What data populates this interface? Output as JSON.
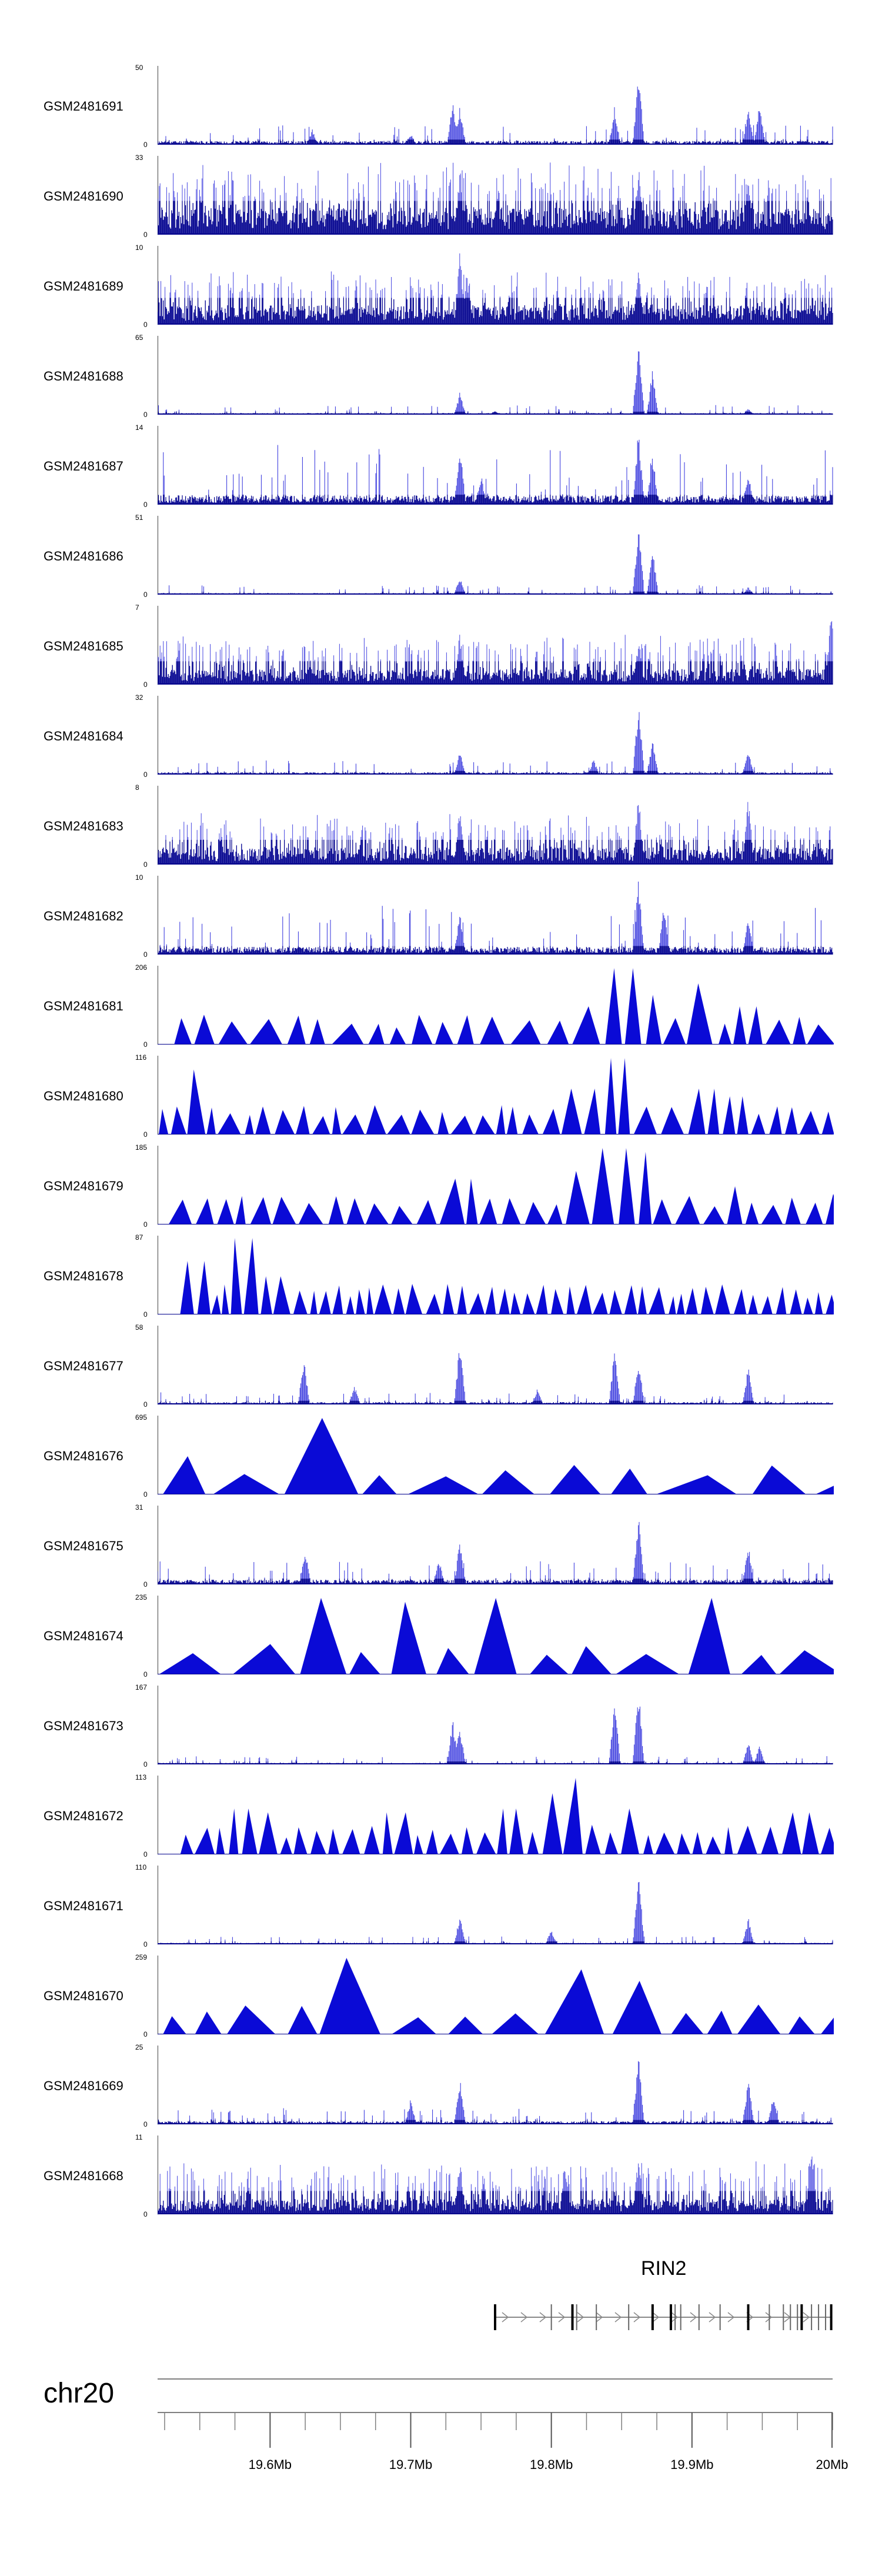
{
  "chart_data": {
    "type": "genome-browser",
    "region": {
      "chromosome": "chr20",
      "start_mb": 19.52,
      "end_mb": 20.0
    },
    "tracks": [
      {
        "name": "GSM2481691",
        "max": "50",
        "min": "0",
        "style": "signal",
        "seed": 11,
        "base": 0.05,
        "noise": 0.1,
        "peaks": [
          [
            19.73,
            0.6
          ],
          [
            19.735,
            0.5
          ],
          [
            19.845,
            0.5
          ],
          [
            19.862,
            1.0
          ],
          [
            19.94,
            0.5
          ],
          [
            19.948,
            0.55
          ],
          [
            19.63,
            0.2
          ],
          [
            19.7,
            0.15
          ]
        ]
      },
      {
        "name": "GSM2481690",
        "max": "33",
        "min": "0",
        "style": "dense",
        "seed": 12,
        "base": 0.35,
        "noise": 0.45,
        "peaks": [
          [
            19.735,
            0.9
          ],
          [
            19.862,
            0.95
          ],
          [
            19.94,
            0.8
          ]
        ]
      },
      {
        "name": "GSM2481689",
        "max": "10",
        "min": "0",
        "style": "dense",
        "seed": 13,
        "base": 0.25,
        "noise": 0.35,
        "peaks": [
          [
            19.735,
            1.0
          ],
          [
            19.862,
            0.8
          ],
          [
            19.74,
            0.7
          ]
        ]
      },
      {
        "name": "GSM2481688",
        "max": "65",
        "min": "0",
        "style": "signal",
        "seed": 14,
        "base": 0.02,
        "noise": 0.05,
        "peaks": [
          [
            19.735,
            0.3
          ],
          [
            19.862,
            1.0
          ],
          [
            19.872,
            0.6
          ],
          [
            19.76,
            0.05
          ],
          [
            19.94,
            0.08
          ]
        ]
      },
      {
        "name": "GSM2481687",
        "max": "14",
        "min": "0",
        "style": "signal",
        "seed": 15,
        "base": 0.12,
        "noise": 0.3,
        "peaks": [
          [
            19.735,
            0.8
          ],
          [
            19.862,
            1.0
          ],
          [
            19.872,
            0.7
          ],
          [
            19.75,
            0.4
          ],
          [
            19.94,
            0.45
          ]
        ]
      },
      {
        "name": "GSM2481686",
        "max": "51",
        "min": "0",
        "style": "signal",
        "seed": 16,
        "base": 0.02,
        "noise": 0.05,
        "peaks": [
          [
            19.735,
            0.25
          ],
          [
            19.862,
            1.0
          ],
          [
            19.872,
            0.6
          ],
          [
            19.94,
            0.1
          ]
        ]
      },
      {
        "name": "GSM2481685",
        "max": "7",
        "min": "0",
        "style": "dense",
        "seed": 17,
        "base": 0.2,
        "noise": 0.35,
        "peaks": [
          [
            19.999,
            1.0
          ],
          [
            19.735,
            0.7
          ],
          [
            19.862,
            0.6
          ]
        ]
      },
      {
        "name": "GSM2481684",
        "max": "32",
        "min": "0",
        "style": "signal",
        "seed": 18,
        "base": 0.03,
        "noise": 0.07,
        "peaks": [
          [
            19.735,
            0.3
          ],
          [
            19.862,
            0.95
          ],
          [
            19.872,
            0.45
          ],
          [
            19.94,
            0.35
          ],
          [
            19.83,
            0.2
          ]
        ]
      },
      {
        "name": "GSM2481683",
        "max": "8",
        "min": "0",
        "style": "dense",
        "seed": 19,
        "base": 0.22,
        "noise": 0.35,
        "peaks": [
          [
            19.735,
            0.8
          ],
          [
            19.862,
            0.95
          ],
          [
            19.94,
            0.9
          ]
        ]
      },
      {
        "name": "GSM2481682",
        "max": "10",
        "min": "0",
        "style": "signal",
        "seed": 20,
        "base": 0.1,
        "noise": 0.25,
        "peaks": [
          [
            19.862,
            1.0
          ],
          [
            19.735,
            0.6
          ],
          [
            19.88,
            0.7
          ],
          [
            19.94,
            0.5
          ]
        ]
      },
      {
        "name": "GSM2481681",
        "max": "206",
        "min": "0",
        "style": "triangle",
        "seed": 21,
        "count": 30,
        "peaks": [
          [
            19.85,
            1.0
          ],
          [
            19.84,
            0.7
          ],
          [
            19.83,
            0.5
          ],
          [
            19.863,
            0.85
          ],
          [
            19.875,
            0.65
          ],
          [
            19.9,
            0.8
          ],
          [
            19.94,
            0.5
          ]
        ]
      },
      {
        "name": "GSM2481680",
        "max": "116",
        "min": "0",
        "style": "triangle",
        "seed": 22,
        "count": 42,
        "peaks": [
          [
            19.55,
            0.85
          ],
          [
            19.845,
            1.0
          ],
          [
            19.82,
            0.6
          ],
          [
            19.91,
            0.6
          ],
          [
            19.93,
            0.5
          ]
        ]
      },
      {
        "name": "GSM2481679",
        "max": "185",
        "min": "0",
        "style": "triangle",
        "seed": 23,
        "count": 38,
        "peaks": [
          [
            19.845,
            1.0
          ],
          [
            19.863,
            0.95
          ],
          [
            19.82,
            0.7
          ],
          [
            19.74,
            0.6
          ],
          [
            19.93,
            0.5
          ],
          [
            20.0,
            0.4
          ]
        ]
      },
      {
        "name": "GSM2481678",
        "max": "87",
        "min": "0",
        "style": "triangle",
        "seed": 24,
        "count": 55,
        "peaks": [
          [
            19.58,
            1.0
          ],
          [
            19.53,
            0.95
          ],
          [
            19.545,
            0.7
          ],
          [
            19.6,
            0.5
          ],
          [
            19.7,
            0.4
          ]
        ]
      },
      {
        "name": "GSM2481677",
        "max": "58",
        "min": "0",
        "style": "signal",
        "seed": 25,
        "base": 0.03,
        "noise": 0.06,
        "peaks": [
          [
            19.624,
            0.62
          ],
          [
            19.735,
            0.85
          ],
          [
            19.845,
            0.75
          ],
          [
            19.862,
            0.6
          ],
          [
            19.94,
            0.5
          ],
          [
            19.66,
            0.25
          ],
          [
            19.79,
            0.2
          ]
        ]
      },
      {
        "name": "GSM2481676",
        "max": "695",
        "min": "0",
        "style": "triangle",
        "seed": 26,
        "count": 12,
        "peaks": [
          [
            19.65,
            1.0
          ],
          [
            19.66,
            0.6
          ],
          [
            19.55,
            0.5
          ]
        ]
      },
      {
        "name": "GSM2481675",
        "max": "31",
        "min": "0",
        "style": "signal",
        "seed": 27,
        "base": 0.06,
        "noise": 0.12,
        "peaks": [
          [
            19.862,
            1.0
          ],
          [
            19.735,
            0.6
          ],
          [
            19.94,
            0.55
          ],
          [
            19.625,
            0.45
          ],
          [
            19.72,
            0.35
          ]
        ]
      },
      {
        "name": "GSM2481674",
        "max": "235",
        "min": "0",
        "style": "triangle",
        "seed": 28,
        "count": 14,
        "peaks": [
          [
            19.624,
            1.0
          ],
          [
            19.69,
            0.95
          ],
          [
            19.76,
            1.0
          ],
          [
            19.924,
            1.0
          ]
        ]
      },
      {
        "name": "GSM2481673",
        "max": "167",
        "min": "0",
        "style": "signal",
        "seed": 29,
        "base": 0.02,
        "noise": 0.04,
        "peaks": [
          [
            19.73,
            0.6
          ],
          [
            19.735,
            0.5
          ],
          [
            19.845,
            0.85
          ],
          [
            19.862,
            1.0
          ],
          [
            19.94,
            0.3
          ],
          [
            19.948,
            0.25
          ]
        ]
      },
      {
        "name": "GSM2481672",
        "max": "113",
        "min": "0",
        "style": "triangle",
        "seed": 30,
        "count": 48,
        "peaks": [
          [
            19.815,
            1.0
          ],
          [
            19.8,
            0.8
          ],
          [
            19.58,
            0.6
          ],
          [
            19.6,
            0.55
          ],
          [
            19.69,
            0.55
          ],
          [
            19.77,
            0.6
          ],
          [
            19.86,
            0.6
          ],
          [
            19.98,
            0.55
          ]
        ]
      },
      {
        "name": "GSM2481671",
        "max": "110",
        "min": "0",
        "style": "signal",
        "seed": 31,
        "base": 0.02,
        "noise": 0.04,
        "peaks": [
          [
            19.862,
            1.0
          ],
          [
            19.735,
            0.4
          ],
          [
            19.94,
            0.35
          ],
          [
            19.8,
            0.2
          ]
        ]
      },
      {
        "name": "GSM2481670",
        "max": "259",
        "min": "0",
        "style": "triangle",
        "seed": 32,
        "count": 16,
        "peaks": [
          [
            19.645,
            1.0
          ],
          [
            19.81,
            0.85
          ],
          [
            19.85,
            0.7
          ],
          [
            19.866,
            0.6
          ]
        ]
      },
      {
        "name": "GSM2481669",
        "max": "25",
        "min": "0",
        "style": "signal",
        "seed": 33,
        "base": 0.04,
        "noise": 0.08,
        "peaks": [
          [
            19.862,
            1.0
          ],
          [
            19.735,
            0.6
          ],
          [
            19.94,
            0.6
          ],
          [
            19.958,
            0.4
          ],
          [
            19.7,
            0.35
          ]
        ]
      },
      {
        "name": "GSM2481668",
        "max": "11",
        "min": "0",
        "style": "dense",
        "seed": 34,
        "base": 0.2,
        "noise": 0.38,
        "peaks": [
          [
            19.985,
            1.0
          ],
          [
            19.862,
            0.8
          ],
          [
            19.735,
            0.75
          ],
          [
            19.81,
            0.7
          ]
        ]
      }
    ],
    "gene": {
      "name": "RIN2",
      "start_mb": 19.76,
      "end_mb": 20.0,
      "strand": "+",
      "exons_mb": [
        19.76,
        19.8,
        19.815,
        19.818,
        19.832,
        19.855,
        19.872,
        19.885,
        19.888,
        19.892,
        19.905,
        19.92,
        19.94,
        19.955,
        19.965,
        19.97,
        19.975,
        19.978,
        19.985,
        19.99,
        19.995,
        19.999
      ]
    },
    "axis": {
      "chromosome_label": "chr20",
      "ticks": [
        {
          "mb": 19.6,
          "label": "19.6Mb"
        },
        {
          "mb": 19.7,
          "label": "19.7Mb"
        },
        {
          "mb": 19.8,
          "label": "19.8Mb"
        },
        {
          "mb": 19.9,
          "label": "19.9Mb"
        },
        {
          "mb": 20.0,
          "label": "20Mb"
        }
      ],
      "minor_step_mb": 0.025
    },
    "colors": {
      "signal": "#0a0ad6",
      "signal_dark": "#00008b",
      "axis": "#7f7f7f",
      "gene": "#888888"
    }
  }
}
